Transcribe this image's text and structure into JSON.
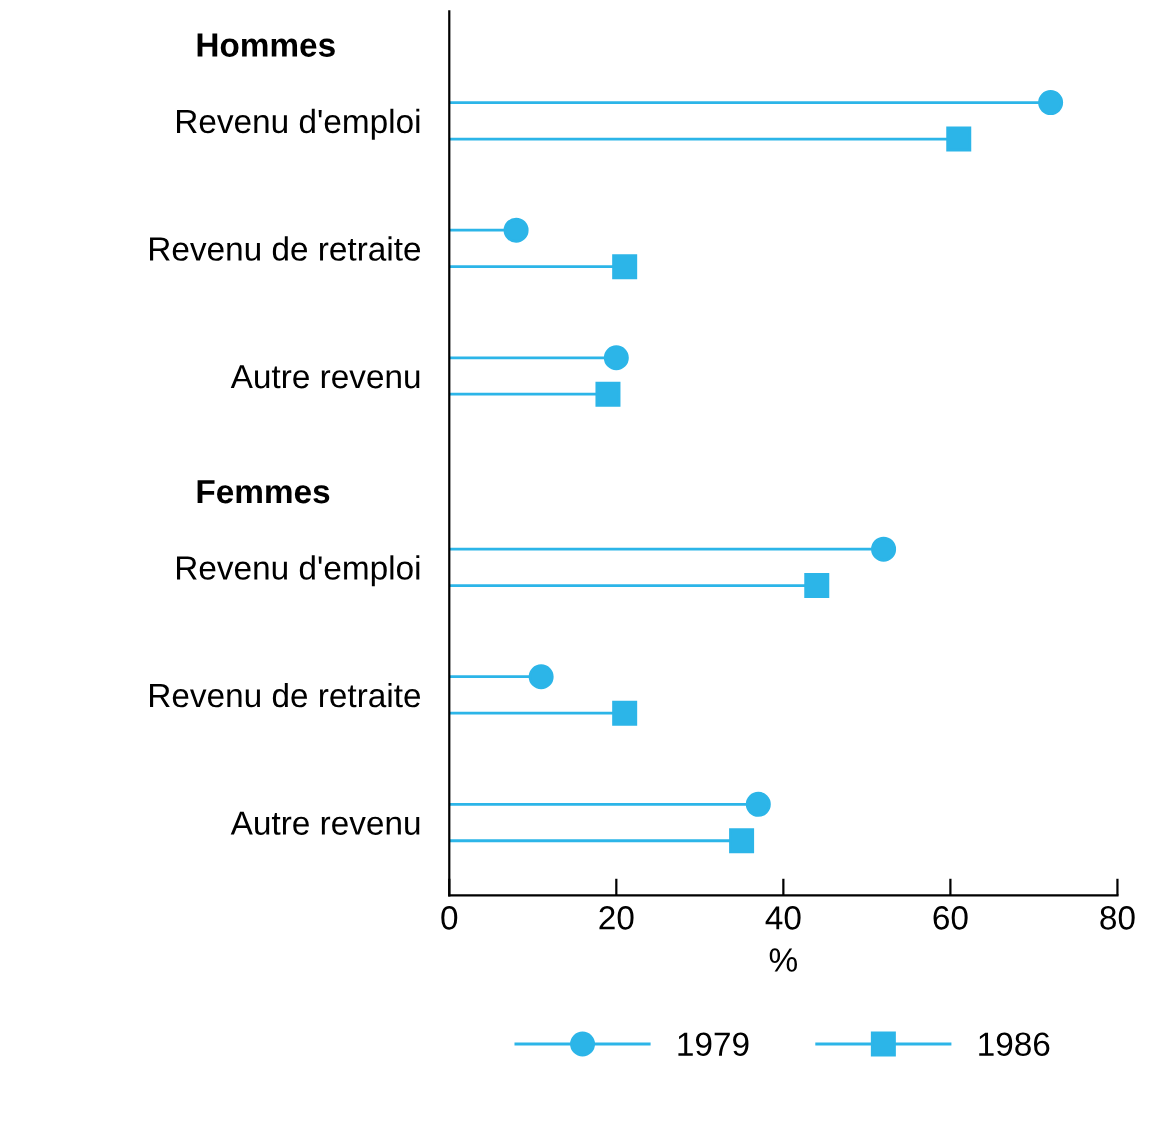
{
  "chart_data": {
    "type": "lollipop",
    "orientation": "horizontal",
    "xlabel": "%",
    "categories": [
      "Revenu d'emploi",
      "Revenu de retraite",
      "Autre revenu",
      "Revenu d'emploi",
      "Revenu de retraite",
      "Autre revenu"
    ],
    "annotations": [
      "Hommes",
      "Femmes"
    ],
    "series": [
      {
        "name": "1979",
        "color": "#2cb5e8",
        "marker": "circle",
        "values": [
          72,
          8,
          20,
          52,
          11,
          37
        ]
      },
      {
        "name": "1986",
        "color": "#2cb5e8",
        "marker": "square",
        "values": [
          61,
          21,
          19,
          44,
          21,
          35
        ]
      }
    ],
    "xlim": [
      0,
      80
    ],
    "xticks": [
      0,
      20,
      40,
      60,
      80
    ],
    "legend": "bottom",
    "grid": false
  }
}
